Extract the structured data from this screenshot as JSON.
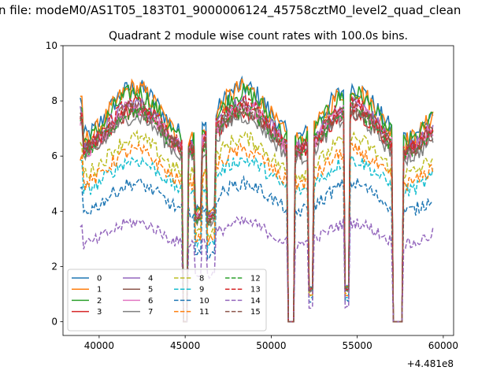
{
  "suptitle": "n file: modeM0/AS1T05_183T01_9000006124_45758cztM0_level2_quad_clean",
  "chart_data": {
    "type": "line",
    "title": "Quadrant 2 module wise count rates with 100.0s bins.",
    "xlabel": "",
    "ylabel": "",
    "x_offset_label": "+4.481e8",
    "xlim": [
      37900,
      60600
    ],
    "ylim": [
      -0.5,
      10
    ],
    "xticks": [
      40000,
      45000,
      50000,
      55000,
      60000
    ],
    "xtick_labels": [
      "40000",
      "45000",
      "50000",
      "55000",
      "60000"
    ],
    "yticks": [
      0,
      2,
      4,
      6,
      8,
      10
    ],
    "ytick_labels": [
      "0",
      "2",
      "4",
      "6",
      "8",
      "10"
    ],
    "grid": false,
    "legend_position": "lower-left",
    "x_start": 38900,
    "x_end": 59400,
    "x_step": 100,
    "gaps": [
      [
        44900,
        45100
      ],
      [
        51000,
        51300
      ],
      [
        57100,
        57600
      ]
    ],
    "dips": [
      [
        45600,
        45900,
        0.4
      ],
      [
        46300,
        46700,
        0.45
      ],
      [
        52200,
        52400,
        0.82
      ],
      [
        54300,
        54500,
        0.85
      ]
    ],
    "series": [
      {
        "name": "0",
        "color": "#1f77b4",
        "dash": "solid",
        "base": 7.6,
        "period_amp": 0.9,
        "noise": 0.35
      },
      {
        "name": "1",
        "color": "#ff7f0e",
        "dash": "solid",
        "base": 7.5,
        "period_amp": 0.95,
        "noise": 0.38
      },
      {
        "name": "2",
        "color": "#2ca02c",
        "dash": "solid",
        "base": 7.4,
        "period_amp": 0.9,
        "noise": 0.35
      },
      {
        "name": "3",
        "color": "#d62728",
        "dash": "solid",
        "base": 6.9,
        "period_amp": 0.7,
        "noise": 0.3
      },
      {
        "name": "4",
        "color": "#9467bd",
        "dash": "solid",
        "base": 7.1,
        "period_amp": 0.8,
        "noise": 0.3
      },
      {
        "name": "5",
        "color": "#8c564b",
        "dash": "solid",
        "base": 6.9,
        "period_amp": 0.75,
        "noise": 0.3
      },
      {
        "name": "6",
        "color": "#e377c2",
        "dash": "solid",
        "base": 7.0,
        "period_amp": 0.8,
        "noise": 0.32
      },
      {
        "name": "7",
        "color": "#7f7f7f",
        "dash": "solid",
        "base": 6.7,
        "period_amp": 0.75,
        "noise": 0.3
      },
      {
        "name": "8",
        "color": "#bcbd22",
        "dash": "dashed",
        "base": 6.0,
        "period_amp": 0.65,
        "noise": 0.28
      },
      {
        "name": "9",
        "color": "#17becf",
        "dash": "dashed",
        "base": 5.3,
        "period_amp": 0.55,
        "noise": 0.25
      },
      {
        "name": "10",
        "color": "#1f77b4",
        "dash": "dashed",
        "base": 4.5,
        "period_amp": 0.5,
        "noise": 0.25
      },
      {
        "name": "11",
        "color": "#ff7f0e",
        "dash": "dashed",
        "base": 5.6,
        "period_amp": 0.6,
        "noise": 0.27
      },
      {
        "name": "12",
        "color": "#2ca02c",
        "dash": "dashed",
        "base": 6.9,
        "period_amp": 0.75,
        "noise": 0.3
      },
      {
        "name": "13",
        "color": "#d62728",
        "dash": "dashed",
        "base": 7.1,
        "period_amp": 0.8,
        "noise": 0.3
      },
      {
        "name": "14",
        "color": "#9467bd",
        "dash": "dashed",
        "base": 3.2,
        "period_amp": 0.4,
        "noise": 0.22
      },
      {
        "name": "15",
        "color": "#8c564b",
        "dash": "dashed",
        "base": 7.0,
        "period_amp": 0.8,
        "noise": 0.3
      }
    ]
  }
}
